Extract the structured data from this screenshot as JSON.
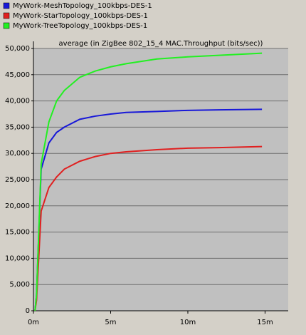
{
  "chart_data": {
    "type": "line",
    "title": "average (in ZigBee 802_15_4 MAC.Throughput (bits/sec))",
    "x": [
      0.1,
      0.2,
      0.5,
      1,
      1.5,
      2,
      3,
      4,
      5,
      6,
      8,
      10,
      12,
      14.8
    ],
    "series": [
      {
        "name": "MyWork-MeshTopology_100kbps-DES-1",
        "color": "#1818d8",
        "values": [
          0,
          3000,
          27000,
          32000,
          34000,
          35000,
          36500,
          37100,
          37500,
          37800,
          38000,
          38200,
          38300,
          38400
        ]
      },
      {
        "name": "MyWork-StarTopology_100kbps-DES-1",
        "color": "#e02020",
        "values": [
          0,
          2000,
          19000,
          23500,
          25500,
          27000,
          28500,
          29400,
          30000,
          30300,
          30700,
          31000,
          31100,
          31300
        ]
      },
      {
        "name": "MyWork-TreeTopology_100kbps-DES-1",
        "color": "#22f022",
        "values": [
          0,
          3000,
          28000,
          36000,
          40000,
          42000,
          44500,
          45700,
          46500,
          47100,
          48000,
          48400,
          48700,
          49100
        ]
      }
    ],
    "xlim": [
      0,
      16.5
    ],
    "xticks": [
      {
        "value": 0,
        "label": "0m"
      },
      {
        "value": 5,
        "label": "5m"
      },
      {
        "value": 10,
        "label": "10m"
      },
      {
        "value": 15,
        "label": "15m"
      }
    ],
    "ylim": [
      0,
      50000
    ],
    "yticks": [
      {
        "value": 0,
        "label": "0"
      },
      {
        "value": 5000,
        "label": "5,000"
      },
      {
        "value": 10000,
        "label": "10,000"
      },
      {
        "value": 15000,
        "label": "15,000"
      },
      {
        "value": 20000,
        "label": "20,000"
      },
      {
        "value": 25000,
        "label": "25,000"
      },
      {
        "value": 30000,
        "label": "30,000"
      },
      {
        "value": 35000,
        "label": "35,000"
      },
      {
        "value": 40000,
        "label": "40,000"
      },
      {
        "value": 45000,
        "label": "45,000"
      },
      {
        "value": 50000,
        "label": "50,000"
      }
    ],
    "grid": true
  }
}
